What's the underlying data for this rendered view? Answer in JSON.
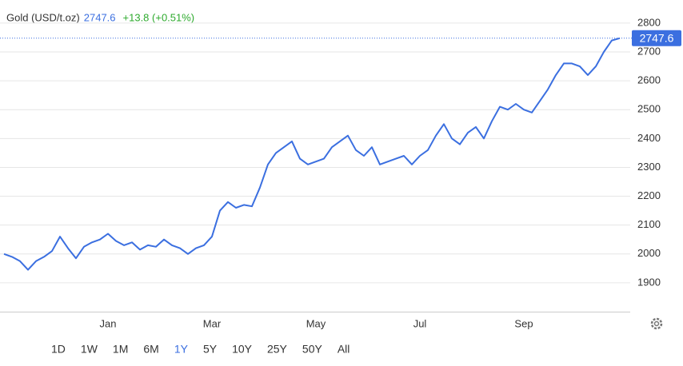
{
  "chart_data": {
    "type": "line",
    "title": "Gold (USD/t.oz)",
    "last_value": 2747.6,
    "change_label": "+13.8 (+0.51%)",
    "categories": [
      null,
      null,
      null,
      null,
      null,
      null,
      null,
      null,
      null,
      null,
      null,
      null,
      null,
      "Jan",
      null,
      null,
      null,
      null,
      null,
      null,
      null,
      null,
      null,
      null,
      null,
      null,
      "Mar",
      null,
      null,
      null,
      null,
      null,
      null,
      null,
      null,
      null,
      null,
      null,
      null,
      "May",
      null,
      null,
      null,
      null,
      null,
      null,
      null,
      null,
      null,
      null,
      null,
      null,
      "Jul",
      null,
      null,
      null,
      null,
      null,
      null,
      null,
      null,
      null,
      null,
      null,
      null,
      "Sep",
      null,
      null,
      null,
      null,
      null,
      null,
      null,
      null,
      null,
      null,
      null,
      null
    ],
    "series": [
      {
        "name": "Gold",
        "color": "#3b6fe0",
        "values": [
          2000,
          1990,
          1975,
          1945,
          1975,
          1990,
          2010,
          2060,
          2020,
          1985,
          2025,
          2040,
          2050,
          2070,
          2045,
          2030,
          2040,
          2015,
          2030,
          2025,
          2050,
          2030,
          2020,
          2000,
          2020,
          2030,
          2060,
          2150,
          2180,
          2160,
          2170,
          2165,
          2230,
          2310,
          2350,
          2370,
          2390,
          2330,
          2310,
          2320,
          2330,
          2370,
          2390,
          2410,
          2360,
          2340,
          2370,
          2310,
          2320,
          2330,
          2340,
          2310,
          2340,
          2360,
          2410,
          2450,
          2400,
          2380,
          2420,
          2440,
          2400,
          2460,
          2510,
          2500,
          2520,
          2500,
          2490,
          2530,
          2570,
          2620,
          2660,
          2660,
          2650,
          2620,
          2650,
          2700,
          2740,
          2747.6
        ]
      }
    ],
    "ylim": [
      1800,
      2880
    ],
    "yticks": [
      1900,
      2000,
      2100,
      2200,
      2300,
      2400,
      2500,
      2600,
      2700,
      2800
    ],
    "grid": true,
    "ranges": [
      "1D",
      "1W",
      "1M",
      "6M",
      "1Y",
      "5Y",
      "10Y",
      "25Y",
      "50Y",
      "All"
    ],
    "active_range": "1Y"
  }
}
